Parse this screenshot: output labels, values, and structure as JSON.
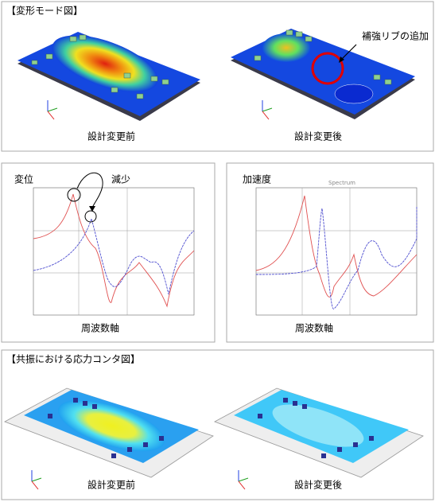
{
  "top_panel": {
    "title": "【変形モード図】",
    "labels": [
      "設計変更前",
      "設計変更後"
    ],
    "annotation": "補強リブの追加"
  },
  "charts": [
    {
      "title": "変位",
      "annotation": "減少",
      "x_label": "周波数軸"
    },
    {
      "title": "加速度",
      "subtitle": "Spectrum",
      "x_label": "周波数軸"
    }
  ],
  "bottom_panel": {
    "title": "【共振における応力コンタ図】",
    "labels": [
      "設計変更前",
      "設計変更後"
    ]
  }
}
